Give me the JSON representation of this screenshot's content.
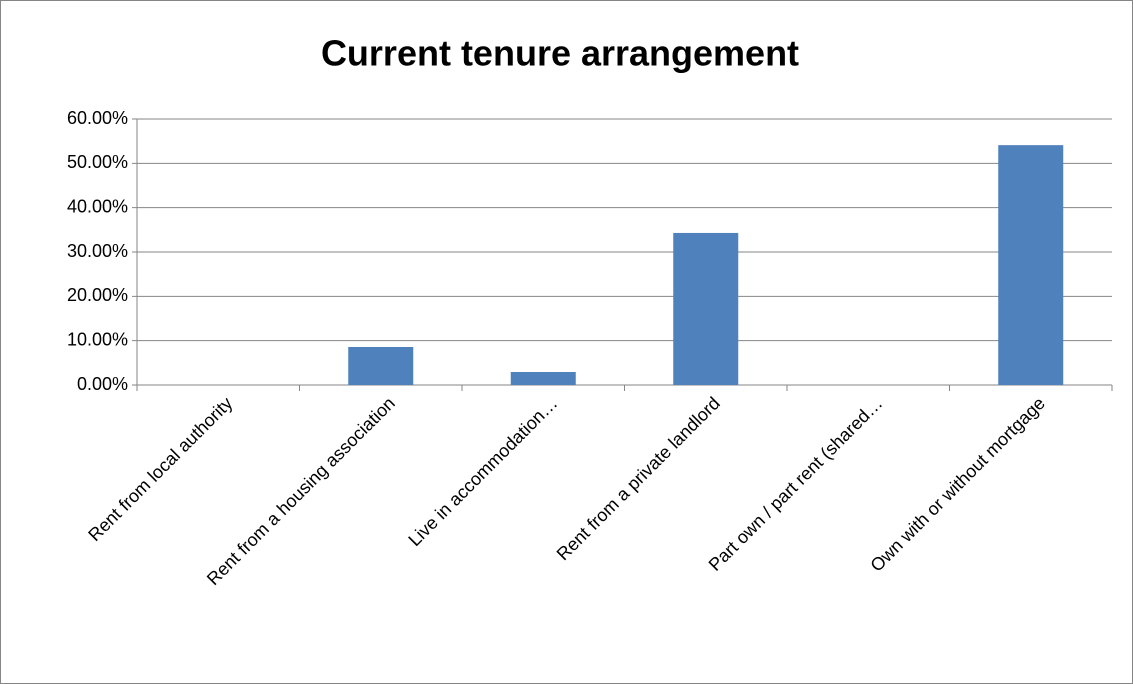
{
  "chart_data": {
    "type": "bar",
    "title": "Current tenure arrangement",
    "categories": [
      "Rent from local authority",
      "Rent from a housing association",
      "Live in accommodation…",
      "Rent from a private landlord",
      "Part own / part rent (shared…",
      "Own with or without mortgage"
    ],
    "values": [
      0,
      8.57,
      2.93,
      34.3,
      0,
      54.1
    ],
    "color": "#4f81bd",
    "ylim": [
      0,
      60
    ],
    "yticks": [
      {
        "value": 0,
        "label": "0.00%"
      },
      {
        "value": 10,
        "label": "10.00%"
      },
      {
        "value": 20,
        "label": "20.00%"
      },
      {
        "value": 30,
        "label": "30.00%"
      },
      {
        "value": 40,
        "label": "40.00%"
      },
      {
        "value": 50,
        "label": "50.00%"
      },
      {
        "value": 60,
        "label": "60.00%"
      }
    ],
    "grid": true
  }
}
